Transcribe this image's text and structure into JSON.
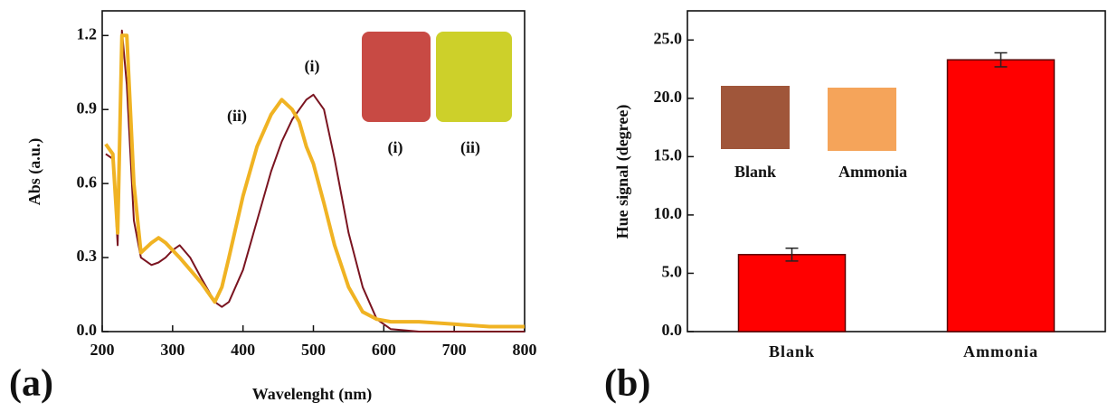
{
  "chart_data": [
    {
      "type": "line",
      "panel_label": "(a)",
      "x_label": "Wavelenght (nm)",
      "y_label": "Abs (a.u.)",
      "x": [
        205,
        215,
        222,
        228,
        235,
        245,
        255,
        270,
        280,
        290,
        300,
        310,
        325,
        340,
        360,
        370,
        380,
        400,
        420,
        440,
        455,
        470,
        480,
        490,
        500,
        515,
        530,
        550,
        570,
        590,
        610,
        650,
        700,
        750,
        800
      ],
      "series": [
        {
          "name": "(i)",
          "color": "#7a1420",
          "values": [
            0.72,
            0.7,
            0.35,
            1.22,
            1.0,
            0.45,
            0.3,
            0.27,
            0.28,
            0.3,
            0.33,
            0.35,
            0.3,
            0.22,
            0.12,
            0.1,
            0.12,
            0.25,
            0.45,
            0.65,
            0.77,
            0.86,
            0.9,
            0.94,
            0.96,
            0.9,
            0.7,
            0.4,
            0.18,
            0.05,
            0.01,
            0,
            0,
            0,
            0
          ]
        },
        {
          "name": "(ii)",
          "color": "#f0b323",
          "values": [
            0.76,
            0.72,
            0.4,
            1.2,
            1.2,
            0.6,
            0.32,
            0.36,
            0.38,
            0.36,
            0.33,
            0.3,
            0.25,
            0.2,
            0.12,
            0.18,
            0.3,
            0.55,
            0.75,
            0.88,
            0.94,
            0.9,
            0.85,
            0.75,
            0.68,
            0.52,
            0.35,
            0.18,
            0.08,
            0.05,
            0.04,
            0.04,
            0.03,
            0.02,
            0.02
          ]
        }
      ],
      "xlim": [
        200,
        800
      ],
      "xticks": [
        200,
        300,
        400,
        500,
        600,
        700,
        800
      ],
      "ylim": [
        0,
        1.3
      ],
      "yticks": [
        {
          "value": 0,
          "label": "0.0"
        },
        0.3,
        0.6,
        0.9,
        1.2
      ],
      "annotations": [
        "(i)",
        "(ii)"
      ],
      "inset_labels": [
        "(i)",
        "(ii)"
      ]
    },
    {
      "type": "bar",
      "panel_label": "(b)",
      "y_label": "Hue signal (degree)",
      "categories": [
        "Blank",
        "Ammonia"
      ],
      "values": [
        6.6,
        23.3
      ],
      "errors": [
        0.55,
        0.6
      ],
      "color": "#ff0000",
      "ylim": [
        0,
        27.5
      ],
      "yticks": [
        {
          "value": 0,
          "label": "0.0"
        },
        {
          "value": 5,
          "label": "5.0"
        },
        {
          "value": 10,
          "label": "10.0"
        },
        {
          "value": 15,
          "label": "15.0"
        },
        {
          "value": 20,
          "label": "20.0"
        },
        {
          "value": 25,
          "label": "25.0"
        }
      ],
      "inset_labels": [
        "Blank",
        "Ammonia"
      ]
    }
  ]
}
